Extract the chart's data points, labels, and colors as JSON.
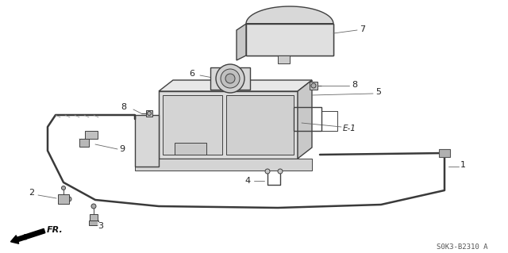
{
  "background_color": "#ffffff",
  "line_color": "#404040",
  "thin_color": "#555555",
  "label_color": "#222222",
  "watermark": "S0K3-B2310 A",
  "figsize": [
    6.4,
    3.19
  ],
  "dpi": 100,
  "cable_color": "#444444",
  "part_color": "#888888",
  "fill_light": "#e8e8e8",
  "fill_mid": "#d0d0d0",
  "fill_dark": "#aaaaaa"
}
